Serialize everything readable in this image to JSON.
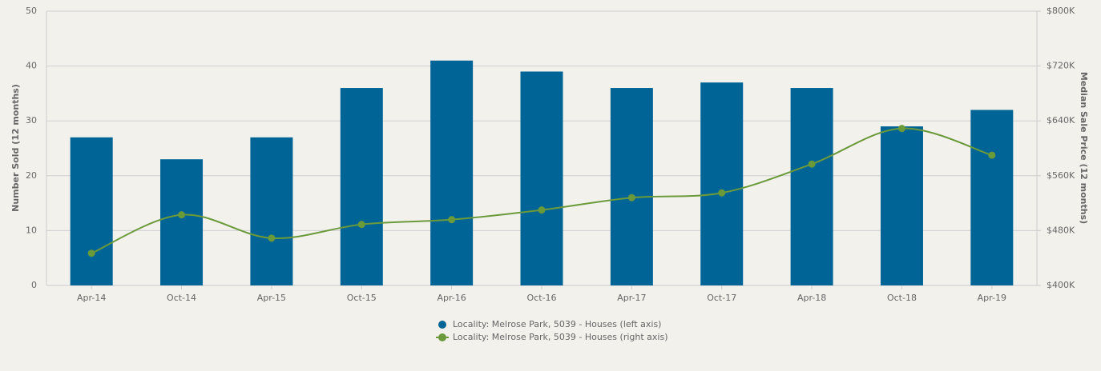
{
  "chart_data": {
    "type": "bar_line",
    "categories": [
      "Apr-14",
      "Oct-14",
      "Apr-15",
      "Oct-15",
      "Apr-16",
      "Oct-16",
      "Apr-17",
      "Oct-17",
      "Apr-18",
      "Oct-18",
      "Apr-19"
    ],
    "series": [
      {
        "name": "Locality: Melrose Park, 5039 - Houses (left axis)",
        "color": "#006496",
        "type": "bar",
        "values": [
          27,
          23,
          27,
          36,
          41,
          39,
          36,
          37,
          36,
          29,
          32
        ]
      },
      {
        "name": "Locality: Melrose Park, 5039 - Houses (right axis)",
        "color": "#6a9a3a",
        "type": "line",
        "axis": "y2",
        "values": [
          447000,
          503000,
          469000,
          489000,
          496000,
          510000,
          528000,
          535000,
          577000,
          629000,
          590000
        ]
      }
    ],
    "ylabel": "Number Sold (12 months)",
    "y2label": "Median Sale Price (12 months)",
    "ylim": [
      0,
      50
    ],
    "yticks": [
      0,
      10,
      20,
      30,
      40,
      50
    ],
    "y2lim": [
      400000,
      800000
    ],
    "y2ticks": [
      {
        "value": 400000,
        "label": "$400K"
      },
      {
        "value": 480000,
        "label": "$480K"
      },
      {
        "value": 560000,
        "label": "$560K"
      },
      {
        "value": 640000,
        "label": "$640K"
      },
      {
        "value": 720000,
        "label": "$720K"
      },
      {
        "value": 800000,
        "label": "$800K"
      }
    ],
    "grid": true,
    "legend": "bottom"
  }
}
